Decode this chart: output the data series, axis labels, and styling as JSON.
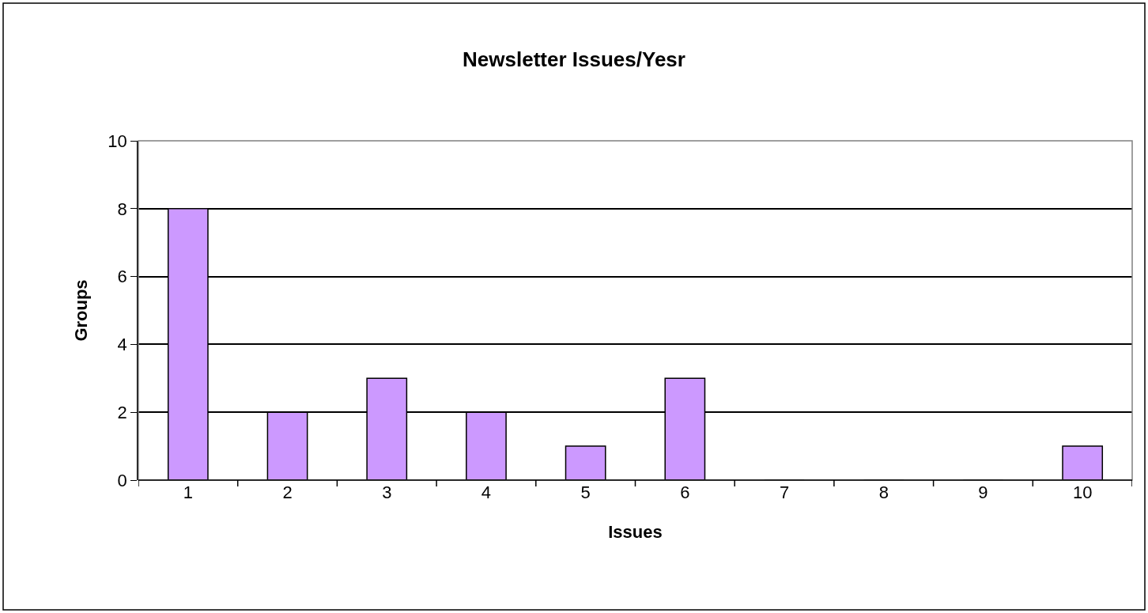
{
  "chart_data": {
    "type": "bar",
    "title": "Newsletter Issues/Yesr",
    "xlabel": "Issues",
    "ylabel": "Groups",
    "categories": [
      "1",
      "2",
      "3",
      "4",
      "5",
      "6",
      "7",
      "8",
      "9",
      "10"
    ],
    "values": [
      8,
      2,
      3,
      2,
      1,
      3,
      0,
      0,
      0,
      1
    ],
    "color": "#cc99ff",
    "ylim": [
      0,
      10
    ],
    "yticks": [
      0,
      2,
      4,
      6,
      8,
      10
    ],
    "grid": "y"
  }
}
